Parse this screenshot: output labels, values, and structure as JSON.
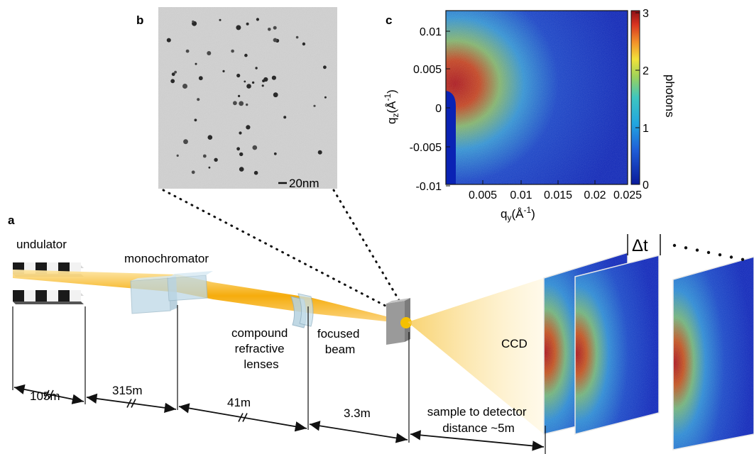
{
  "panel_labels": {
    "a": "a",
    "b": "b",
    "c": "c"
  },
  "panel_b": {
    "scale_bar": "20nm"
  },
  "panel_c": {
    "y_axis": {
      "base": "q",
      "sub": "z",
      "unit": "(Å",
      "exp": "-1",
      "close": ")"
    },
    "x_axis": {
      "base": "q",
      "sub": "y",
      "unit": "(Å",
      "exp": "-1",
      "close": ")"
    },
    "y_ticks": [
      "0.01",
      "0.005",
      "0",
      "-0.005",
      "-0.01"
    ],
    "x_ticks": [
      "0.005",
      "0.01",
      "0.015",
      "0.02",
      "0.025"
    ],
    "colorbar_ticks": [
      "3",
      "2",
      "1",
      "0"
    ],
    "colorbar_label": "photons"
  },
  "setup": {
    "undulator": "undulator",
    "monochromator": "monochromator",
    "lenses": [
      "compound",
      "refractive",
      "lenses"
    ],
    "focused": [
      "focused",
      "beam"
    ],
    "ccd": "CCD",
    "delta_t": "Δt",
    "distances": [
      "105m",
      "315m",
      "41m",
      "3.3m"
    ],
    "detector_distance": [
      "sample to detector",
      "distance ~5m"
    ]
  },
  "colors": {
    "beam": "#f5a800",
    "colormap_low": "#0a1fb4",
    "colormap_mid": "#3ec6c0",
    "colormap_high": "#a8141a"
  }
}
